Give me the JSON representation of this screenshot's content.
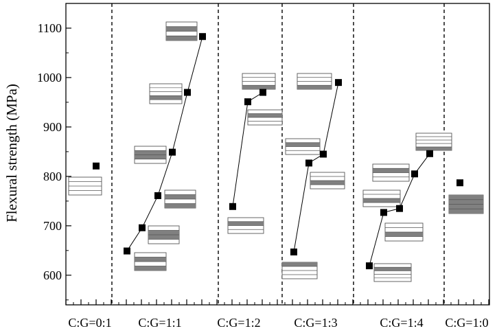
{
  "chart_data": {
    "type": "scatter",
    "title": "",
    "xlabel": "",
    "ylabel": "Flexural strength (MPa)",
    "ylim": [
      540,
      1150
    ],
    "y_ticks": [
      600,
      700,
      800,
      900,
      1000,
      1100
    ],
    "groups": [
      "C:G=0:1",
      "C:G=1:1",
      "C:G=1:2",
      "C:G=1:3",
      "C:G=1:4",
      "C:G=1:0"
    ],
    "grid": false,
    "legend": "none",
    "marker_color": "#000000",
    "layup_gray": "#808080",
    "series": [
      {
        "group": "C:G=0:1",
        "values": [
          821
        ]
      },
      {
        "group": "C:G=1:1",
        "values": [
          649,
          696,
          761,
          849,
          970,
          1083
        ]
      },
      {
        "group": "C:G=1:2",
        "values": [
          739,
          951,
          970
        ]
      },
      {
        "group": "C:G=1:3",
        "values": [
          647,
          827,
          845,
          990
        ]
      },
      {
        "group": "C:G=1:4",
        "values": [
          619,
          727,
          735,
          805,
          846
        ]
      },
      {
        "group": "C:G=1:0",
        "values": [
          787
        ]
      }
    ]
  }
}
